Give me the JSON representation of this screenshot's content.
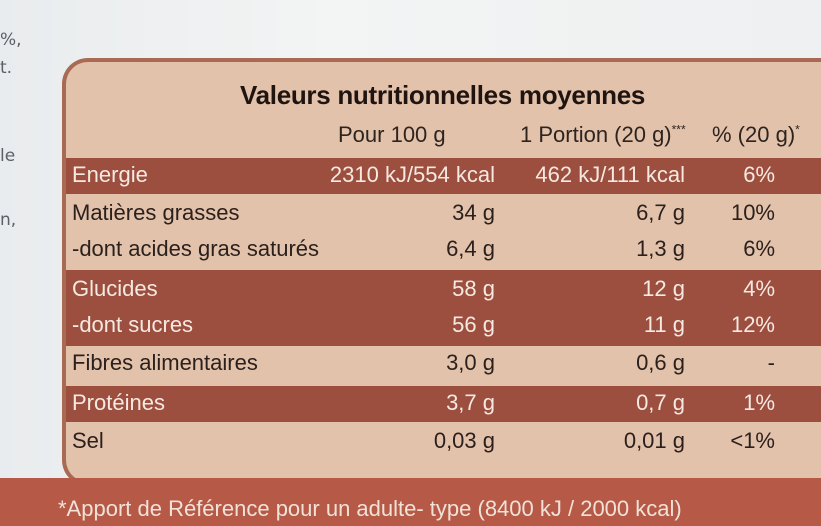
{
  "left_edge_fragments": [
    "%,",
    "t.",
    "le",
    "n,"
  ],
  "title": "Valeurs nutritionnelles moyennes",
  "columns": {
    "per100": "Pour 100 g",
    "portion": "1 Portion (20 g)",
    "portion_mark": "***",
    "pct": "% (20 g)",
    "pct_mark": "*"
  },
  "rows": [
    {
      "label": "Energie",
      "per100": "2310 kJ/554 kcal",
      "portion": "462 kJ/111 kcal",
      "pct": "6%"
    },
    {
      "label": "Matières grasses",
      "per100": "34 g",
      "portion": "6,7 g",
      "pct": "10%"
    },
    {
      "label": "-dont acides gras saturés",
      "per100": "6,4 g",
      "portion": "1,3 g",
      "pct": "6%"
    },
    {
      "label": "Glucides",
      "per100": "58 g",
      "portion": "12 g",
      "pct": "4%"
    },
    {
      "label": "-dont sucres",
      "per100": "56 g",
      "portion": "11 g",
      "pct": "12%"
    },
    {
      "label": "Fibres alimentaires",
      "per100": "3,0 g",
      "portion": "0,6 g",
      "pct": "-"
    },
    {
      "label": "Protéines",
      "per100": "3,7 g",
      "portion": "0,7 g",
      "pct": "1%"
    },
    {
      "label": "Sel",
      "per100": "0,03 g",
      "portion": "0,01 g",
      "pct": "<1%"
    }
  ],
  "footnote": "*Apport de Référence pour un adulte- type (8400 kJ / 2000 kcal)",
  "colors": {
    "band": "#9c4f3f",
    "panel": "#e3c2ab",
    "border": "#a86a53"
  }
}
